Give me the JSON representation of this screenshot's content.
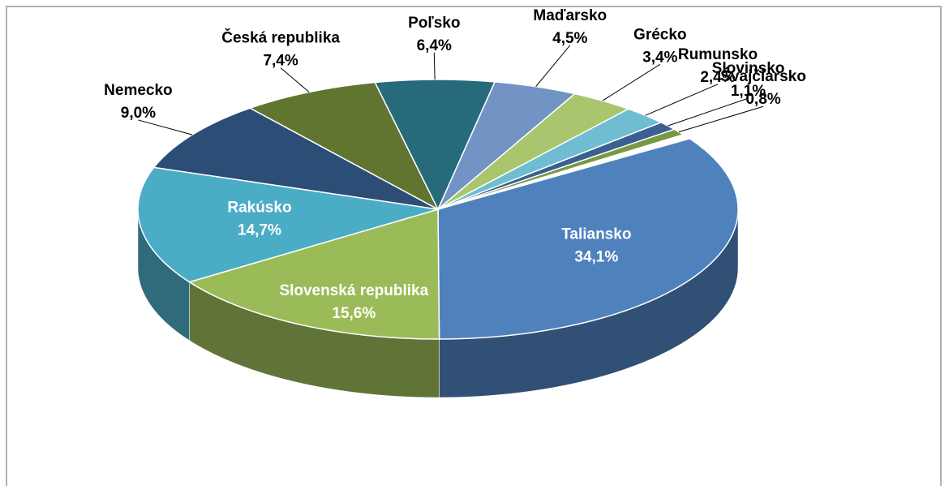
{
  "chart_data": {
    "type": "pie",
    "categories": [
      "Taliansko",
      "Slovenská republika",
      "Rakúsko",
      "Nemecko",
      "Česká republika",
      "Poľsko",
      "Maďarsko",
      "Grécko",
      "Rumunsko",
      "Slovinsko",
      "Švajčiarsko"
    ],
    "values": [
      34.1,
      15.6,
      14.7,
      9.0,
      7.4,
      6.4,
      4.5,
      3.4,
      2.4,
      1.1,
      0.8
    ],
    "value_labels": [
      "34,1%",
      "15,6%",
      "14,7%",
      "9,0%",
      "7,4%",
      "6,4%",
      "4,5%",
      "3,4%",
      "2,4%",
      "1,1%",
      "0,8%"
    ],
    "colors": [
      "#4f81bd",
      "#9bbb59",
      "#4bacc6",
      "#2c4d75",
      "#5f7530",
      "#276a7c",
      "#7294c4",
      "#a9c66e",
      "#6fbdd1",
      "#3a5f91",
      "#779942"
    ]
  }
}
